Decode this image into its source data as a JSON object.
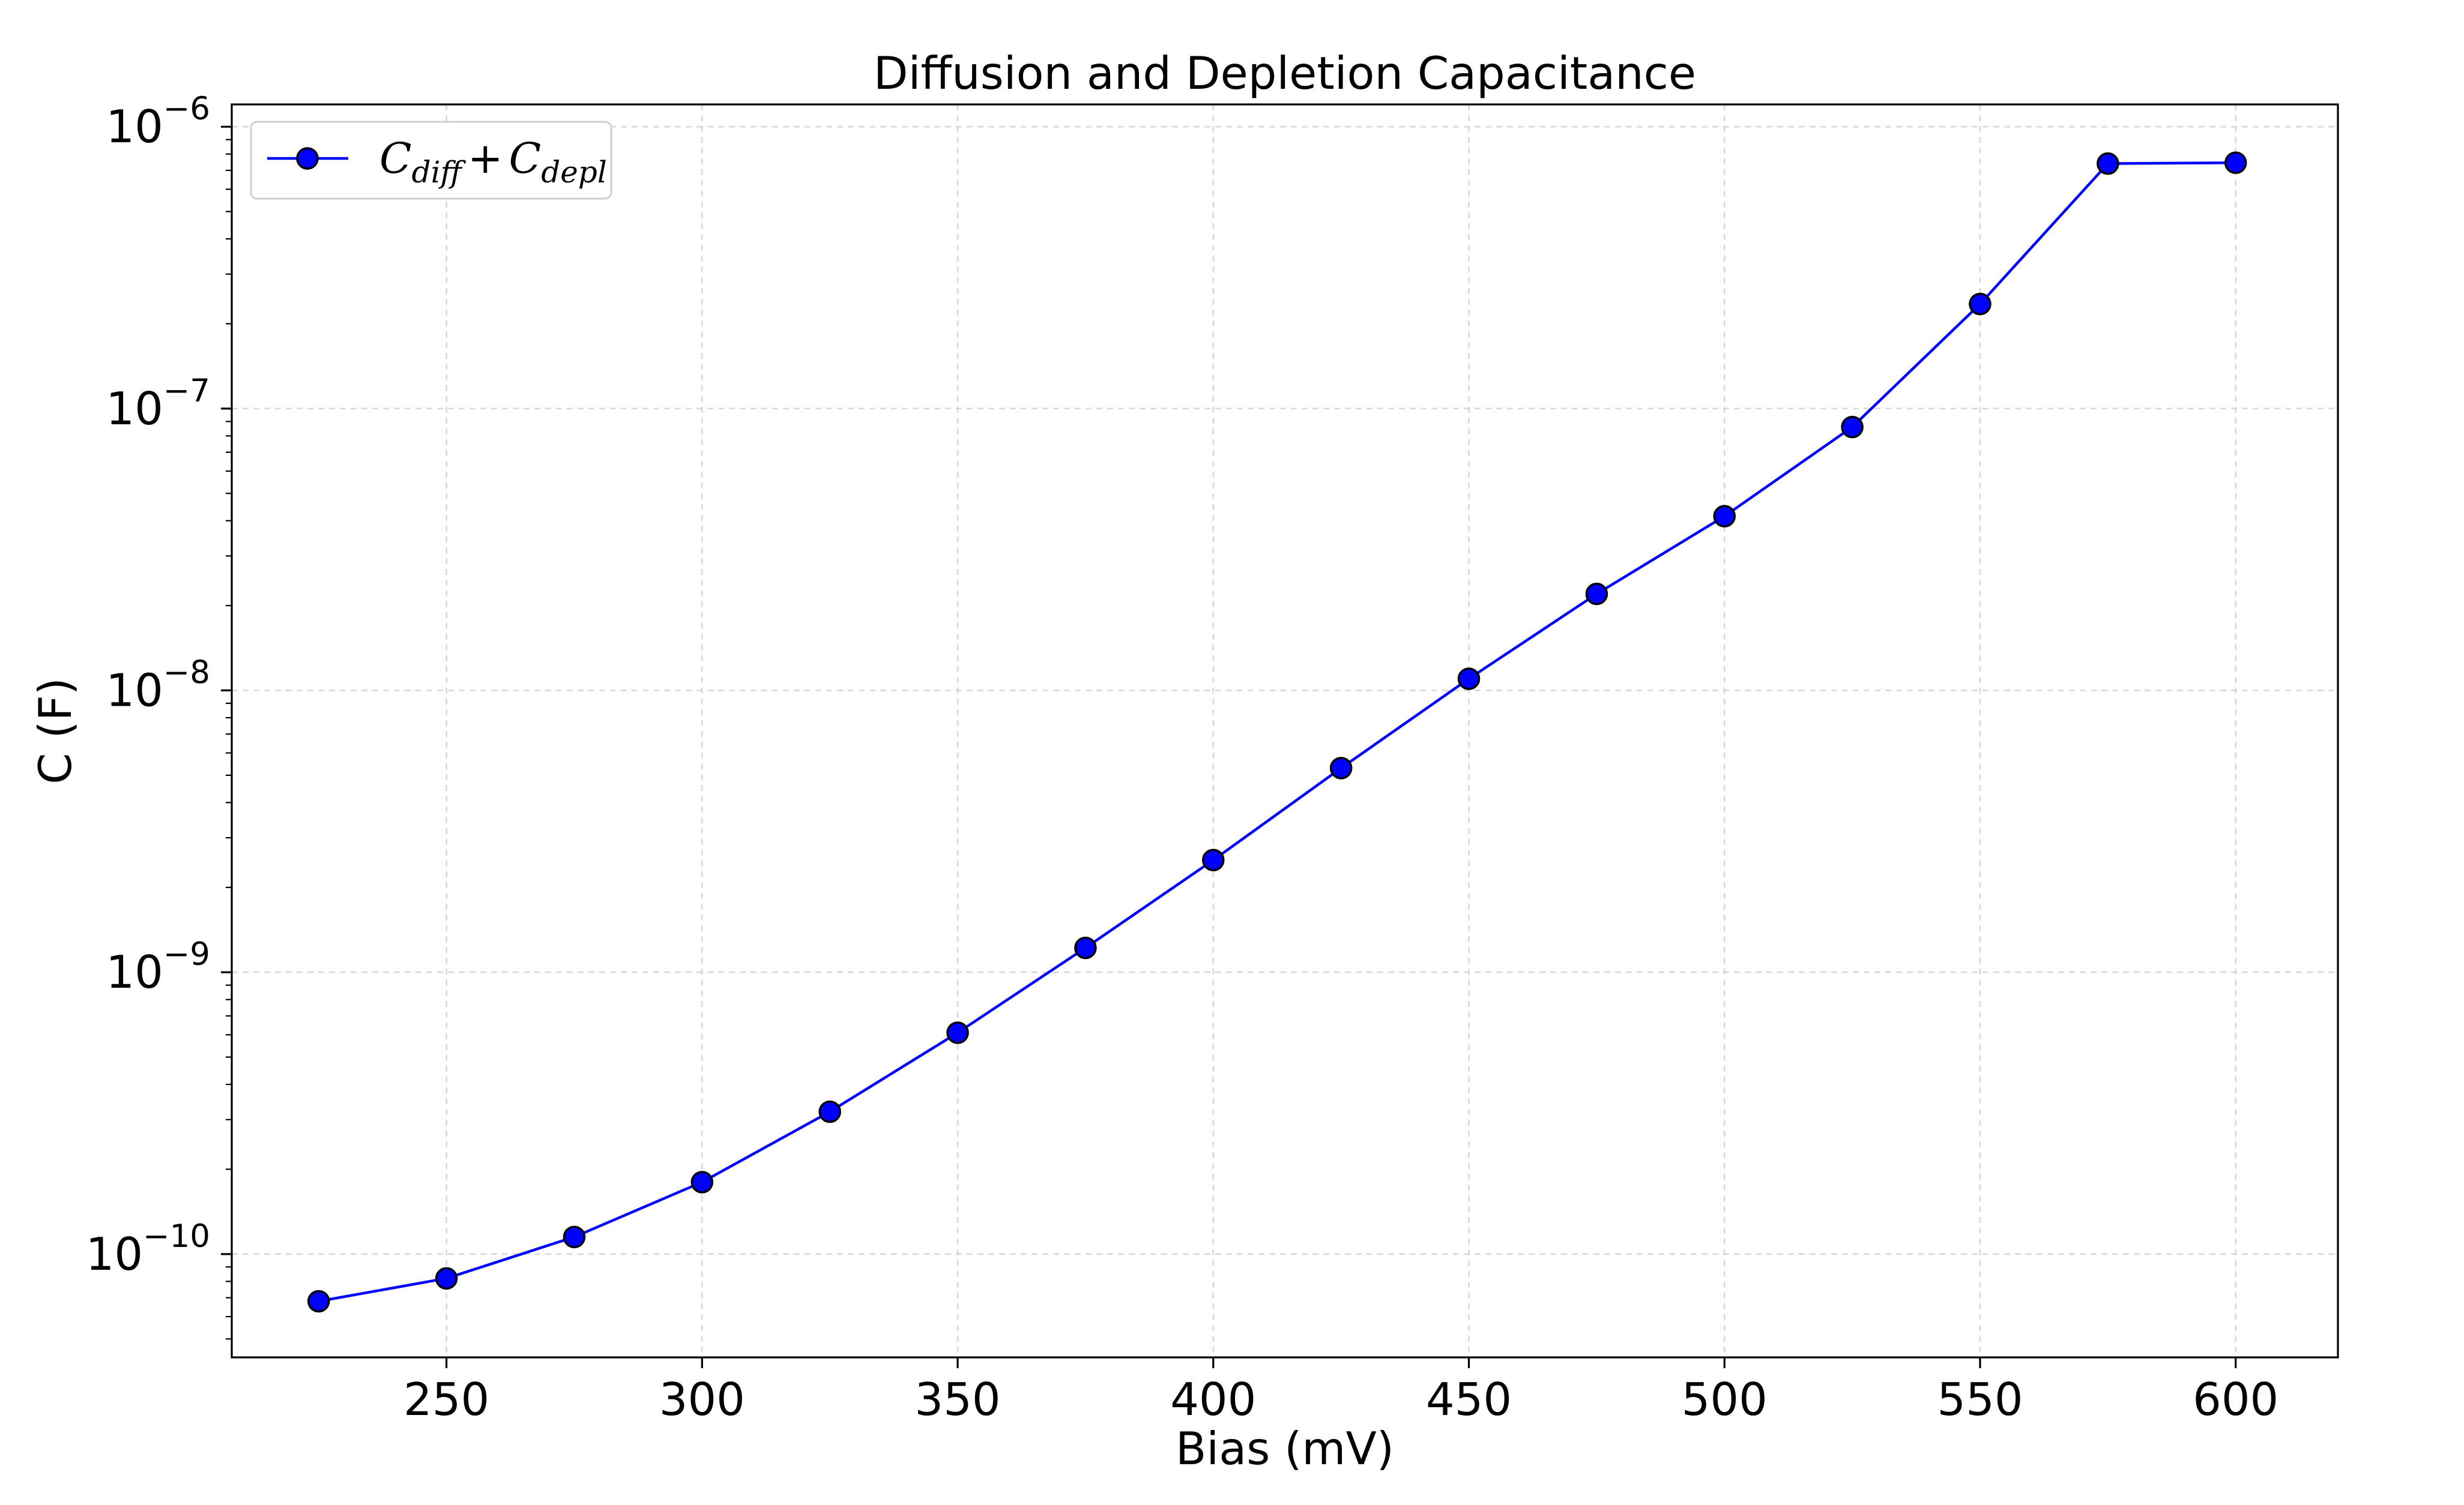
{
  "chart_data": {
    "type": "line",
    "title": "Diffusion and Depletion Capacitance",
    "xlabel": "Bias (mV)",
    "ylabel": "C (F)",
    "yscale": "log",
    "xlim": [
      208,
      620
    ],
    "ylim": [
      4.3e-11,
      1.2e-06
    ],
    "grid": true,
    "legend_placement": "top-left",
    "x_ticks": [
      250,
      300,
      350,
      400,
      450,
      500,
      550,
      600
    ],
    "y_ticks": [
      {
        "base": "10",
        "exp": "−10",
        "value": 1e-10
      },
      {
        "base": "10",
        "exp": "−9",
        "value": 1e-09
      },
      {
        "base": "10",
        "exp": "−8",
        "value": 1e-08
      },
      {
        "base": "10",
        "exp": "−7",
        "value": 1e-07
      },
      {
        "base": "10",
        "exp": "−6",
        "value": 1e-06
      }
    ],
    "series": [
      {
        "legend": {
          "c1": "C",
          "sub1": "diff",
          "op": "+",
          "c2": "C",
          "sub2": "depl"
        },
        "color": "#0000ff",
        "marker": "circle",
        "marker_edge": "#000000",
        "x": [
          225,
          250,
          275,
          300,
          325,
          350,
          375,
          400,
          425,
          450,
          475,
          500,
          525,
          550,
          575,
          600
        ],
        "y": [
          6.8e-11,
          8.2e-11,
          1.15e-10,
          1.8e-10,
          3.2e-10,
          6.1e-10,
          1.22e-09,
          2.5e-09,
          5.3e-09,
          1.1e-08,
          2.2e-08,
          4.15e-08,
          8.6e-08,
          2.35e-07,
          7.4e-07,
          7.45e-07
        ]
      }
    ]
  }
}
